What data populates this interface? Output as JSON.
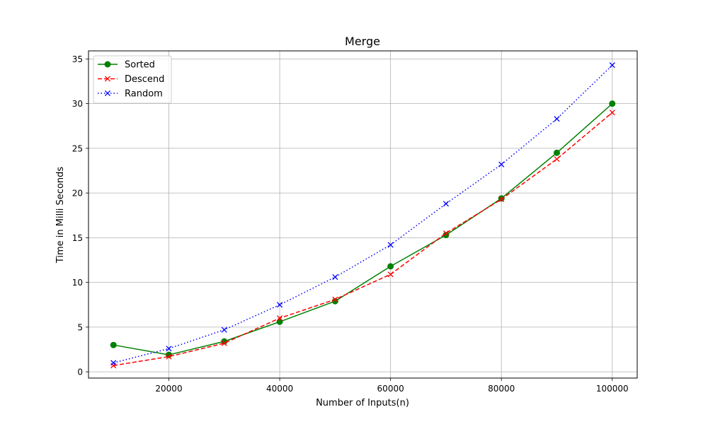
{
  "chart_data": {
    "type": "line",
    "title": "Merge",
    "xlabel": "Number of Inputs(n)",
    "ylabel": "Time in Milli Seconds",
    "x": [
      10000,
      20000,
      30000,
      40000,
      50000,
      60000,
      70000,
      80000,
      90000,
      100000
    ],
    "xticks": [
      20000,
      40000,
      60000,
      80000,
      100000
    ],
    "xlim": [
      5500,
      104500
    ],
    "yticks": [
      0,
      5,
      10,
      15,
      20,
      25,
      30,
      35
    ],
    "ylim": [
      -0.7,
      35.9
    ],
    "grid": true,
    "legend_position": "top-left",
    "series": [
      {
        "name": "Sorted",
        "values": [
          3.0,
          1.9,
          3.4,
          5.6,
          7.9,
          11.8,
          15.3,
          19.4,
          24.5,
          30.0
        ],
        "color": "#008000",
        "marker": "circle",
        "linestyle": "solid"
      },
      {
        "name": "Descend",
        "values": [
          0.7,
          1.7,
          3.2,
          6.0,
          8.1,
          10.9,
          15.5,
          19.3,
          23.8,
          29.0
        ],
        "color": "#ff0000",
        "marker": "x",
        "linestyle": "dashed"
      },
      {
        "name": "Random",
        "values": [
          1.0,
          2.6,
          4.7,
          7.5,
          10.6,
          14.2,
          18.8,
          23.2,
          28.3,
          34.3
        ],
        "color": "#0000ff",
        "marker": "x",
        "linestyle": "dotted"
      }
    ]
  }
}
